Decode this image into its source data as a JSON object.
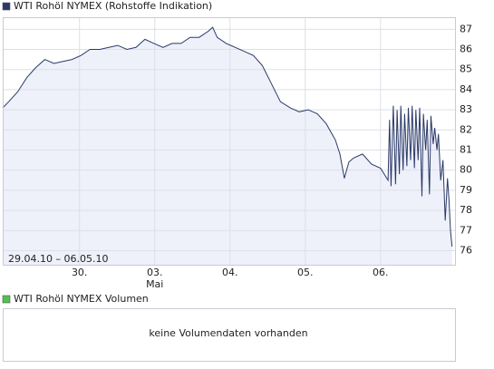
{
  "chart_data": [
    {
      "type": "line",
      "title": "WTI Rohöl NYMEX (Rohstoffe Indikation)",
      "annotation": "29.04.10 – 06.05.10",
      "color": "#2b3a67",
      "area_color": "#eef0fa",
      "legend_color": "#2b3a67",
      "grid": true,
      "x": [
        -0.02,
        0.06,
        0.18,
        0.3,
        0.42,
        0.54,
        0.66,
        0.78,
        0.9,
        1.02,
        1.14,
        1.27,
        1.39,
        1.51,
        1.63,
        1.75,
        1.87,
        1.99,
        2.11,
        2.23,
        2.35,
        2.47,
        2.59,
        2.71,
        2.77,
        2.83,
        2.95,
        3.07,
        3.19,
        3.31,
        3.43,
        3.55,
        3.67,
        3.8,
        3.92,
        4.04,
        4.16,
        4.28,
        4.4,
        4.46,
        4.52,
        4.58,
        4.64,
        4.76,
        4.88,
        5.0,
        5.1,
        5.12,
        5.14,
        5.17,
        5.2,
        5.22,
        5.25,
        5.27,
        5.3,
        5.32,
        5.35,
        5.37,
        5.4,
        5.42,
        5.45,
        5.47,
        5.5,
        5.52,
        5.55,
        5.57,
        5.6,
        5.62,
        5.65,
        5.67,
        5.7,
        5.72,
        5.75,
        5.77,
        5.8,
        5.83,
        5.86,
        5.89,
        5.91,
        5.93,
        5.95
      ],
      "values": [
        83.1,
        83.4,
        83.9,
        84.6,
        85.1,
        85.5,
        85.3,
        85.4,
        85.5,
        85.7,
        86.0,
        86.0,
        86.1,
        86.2,
        86.0,
        86.1,
        86.5,
        86.3,
        86.1,
        86.3,
        86.3,
        86.6,
        86.6,
        86.9,
        87.1,
        86.6,
        86.3,
        86.1,
        85.9,
        85.7,
        85.2,
        84.3,
        83.4,
        83.1,
        82.9,
        83.0,
        82.8,
        82.3,
        81.5,
        80.8,
        79.6,
        80.4,
        80.6,
        80.8,
        80.3,
        80.1,
        79.5,
        82.5,
        79.2,
        83.2,
        79.3,
        83.0,
        79.8,
        83.2,
        80.0,
        82.8,
        80.2,
        83.1,
        80.5,
        83.2,
        80.1,
        83.0,
        80.5,
        83.1,
        78.7,
        82.8,
        81.0,
        82.5,
        78.8,
        82.7,
        81.3,
        82.1,
        81.0,
        81.8,
        79.5,
        80.5,
        77.5,
        79.6,
        78.5,
        77.0,
        76.2
      ],
      "xlim": [
        -0.02,
        5.99
      ],
      "ylim": [
        75.3,
        87.6
      ],
      "xticks": [
        {
          "value": 1,
          "label": "30."
        },
        {
          "value": 2,
          "label": "03."
        },
        {
          "value": 3,
          "label": "04."
        },
        {
          "value": 4,
          "label": "05."
        },
        {
          "value": 5,
          "label": "06."
        }
      ],
      "month_labels": [
        {
          "value": 2,
          "label": "Mai"
        }
      ],
      "yticks": [
        76,
        77,
        78,
        79,
        80,
        81,
        82,
        83,
        84,
        85,
        86,
        87
      ]
    },
    {
      "type": "volume",
      "title": "WTI Rohöl NYMEX Volumen",
      "legend_color": "#4fc24f",
      "message": "keine Volumendaten vorhanden"
    }
  ]
}
